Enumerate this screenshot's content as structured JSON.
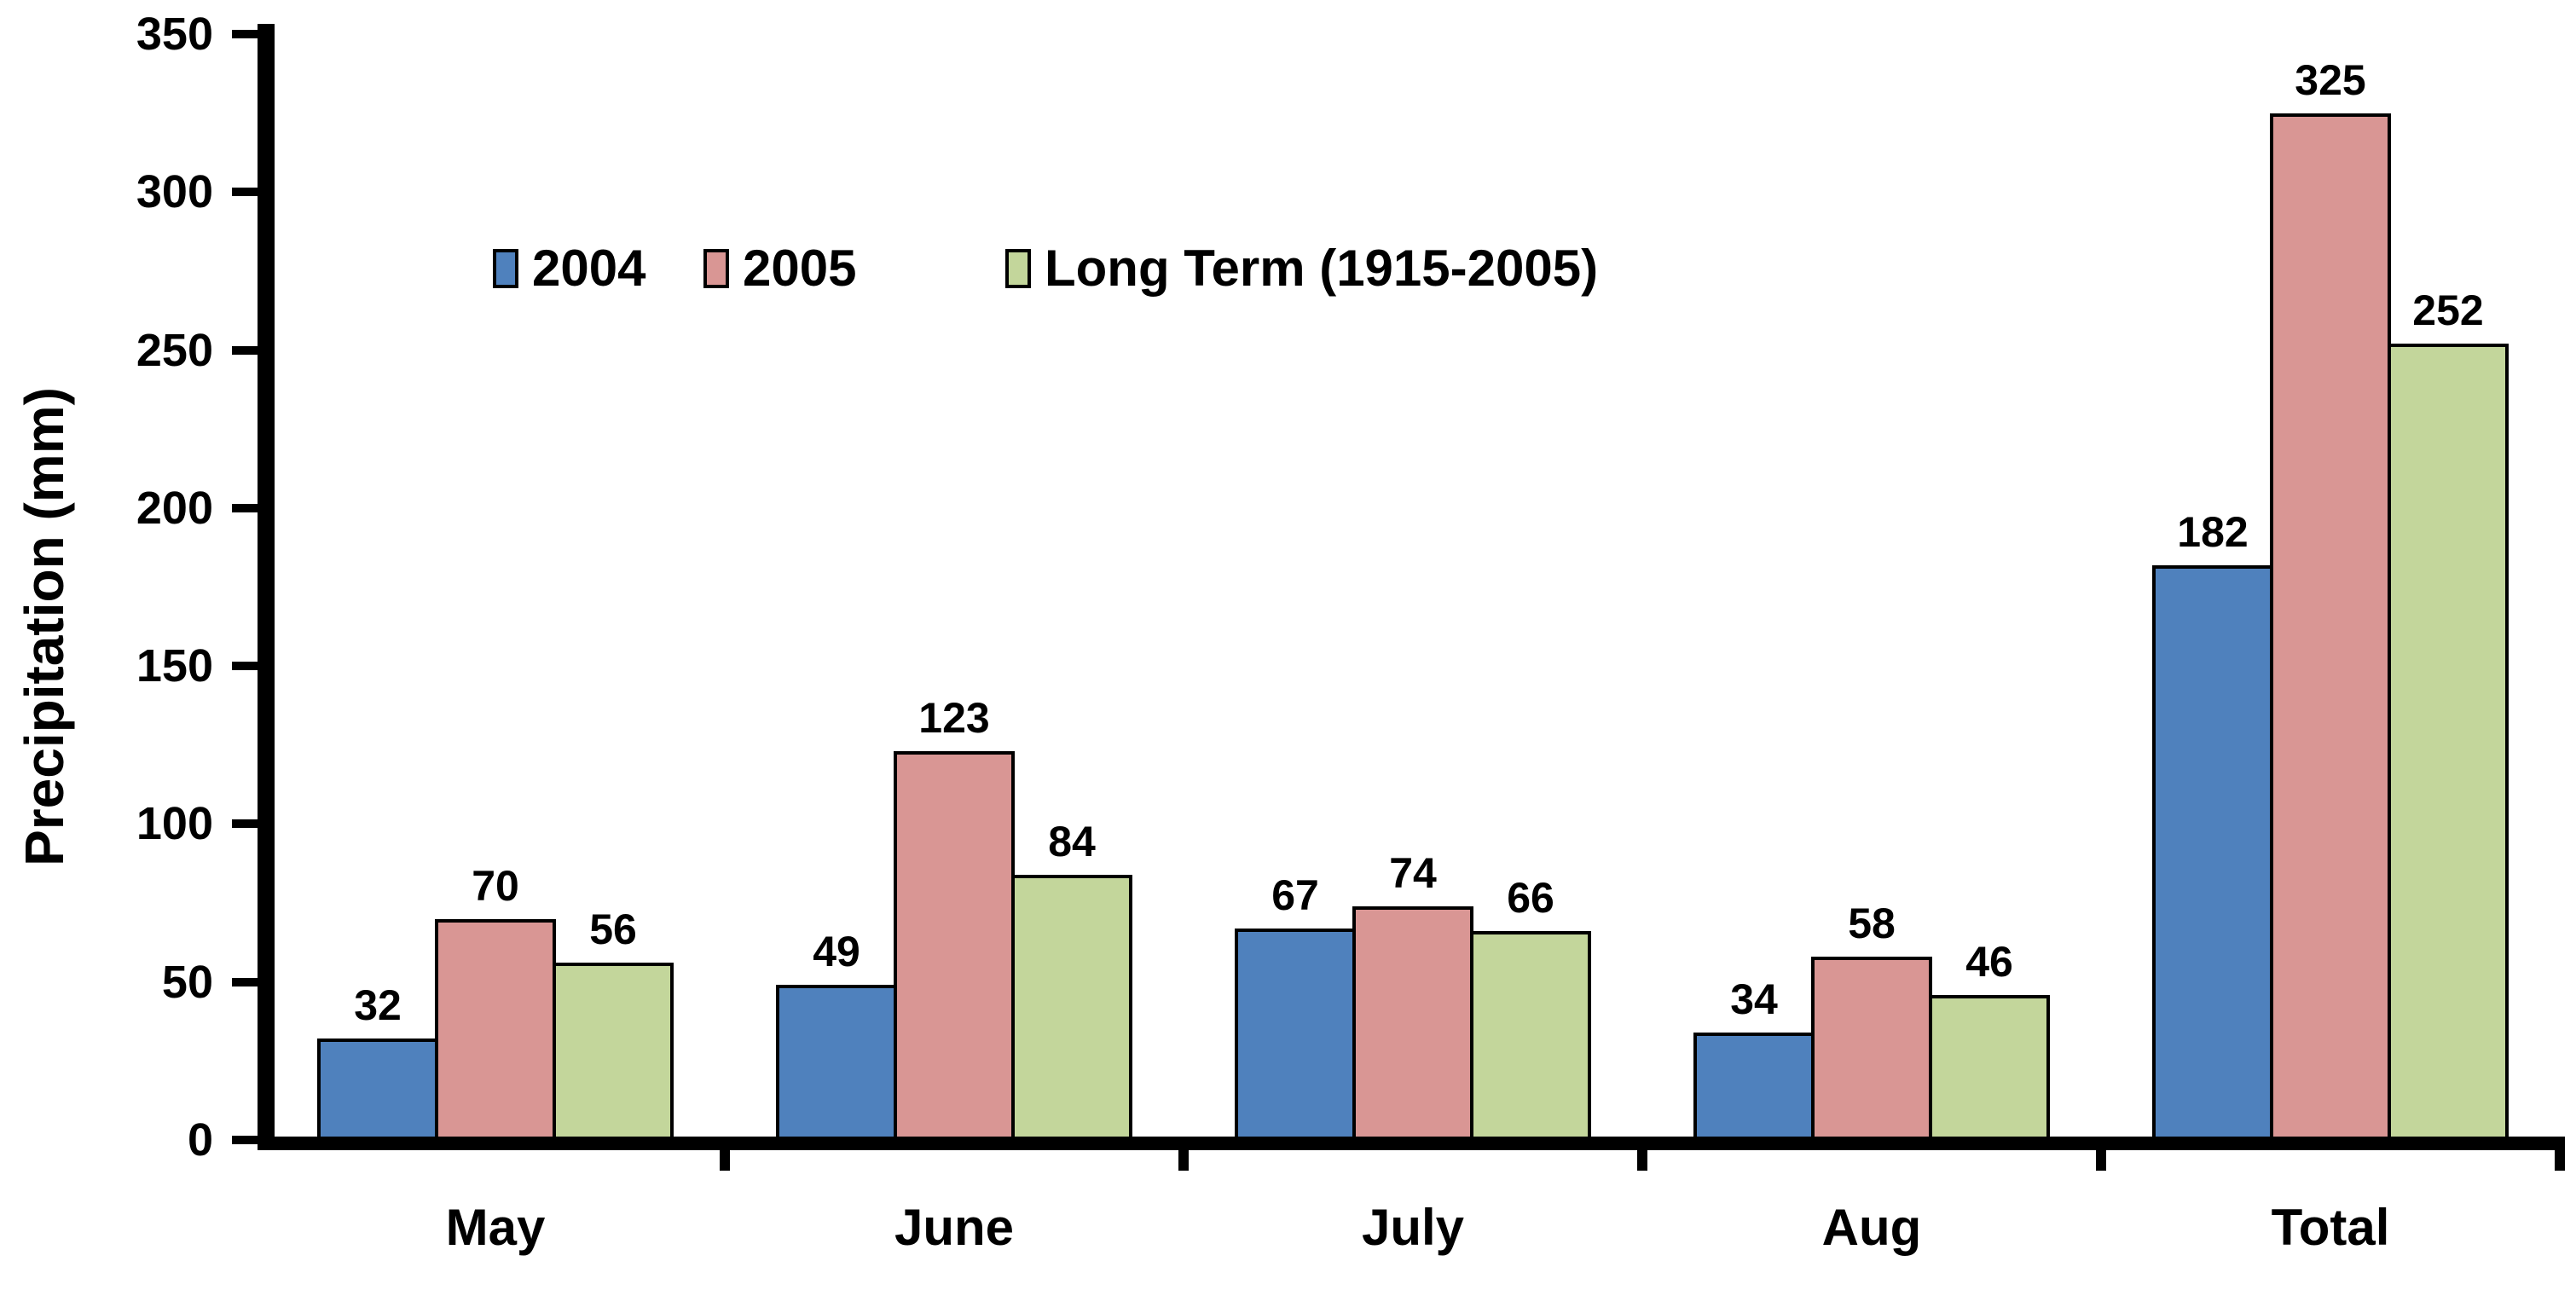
{
  "chart_data": {
    "type": "bar",
    "title": "",
    "xlabel": "",
    "ylabel": "Precipitation (mm)",
    "categories": [
      "May",
      "June",
      "July",
      "Aug",
      "Total"
    ],
    "series": [
      {
        "name": "2004",
        "color": "#4F81BD",
        "values": [
          32,
          49,
          67,
          34,
          182
        ]
      },
      {
        "name": "2005",
        "color": "#D99694",
        "values": [
          70,
          123,
          74,
          58,
          325
        ]
      },
      {
        "name": "Long Term (1915-2005)",
        "color": "#C3D69B",
        "values": [
          56,
          84,
          66,
          46,
          252
        ]
      }
    ],
    "y_ticks": [
      0,
      50,
      100,
      150,
      200,
      250,
      300,
      350
    ],
    "ylim": [
      0,
      350
    ],
    "grid": false,
    "bar_labels": true,
    "legend_position": "top-left-inside",
    "axis_color": "#000000",
    "text_color": "#000000",
    "bar_border_color": "#000000",
    "background_color": "#FFFFFF"
  }
}
